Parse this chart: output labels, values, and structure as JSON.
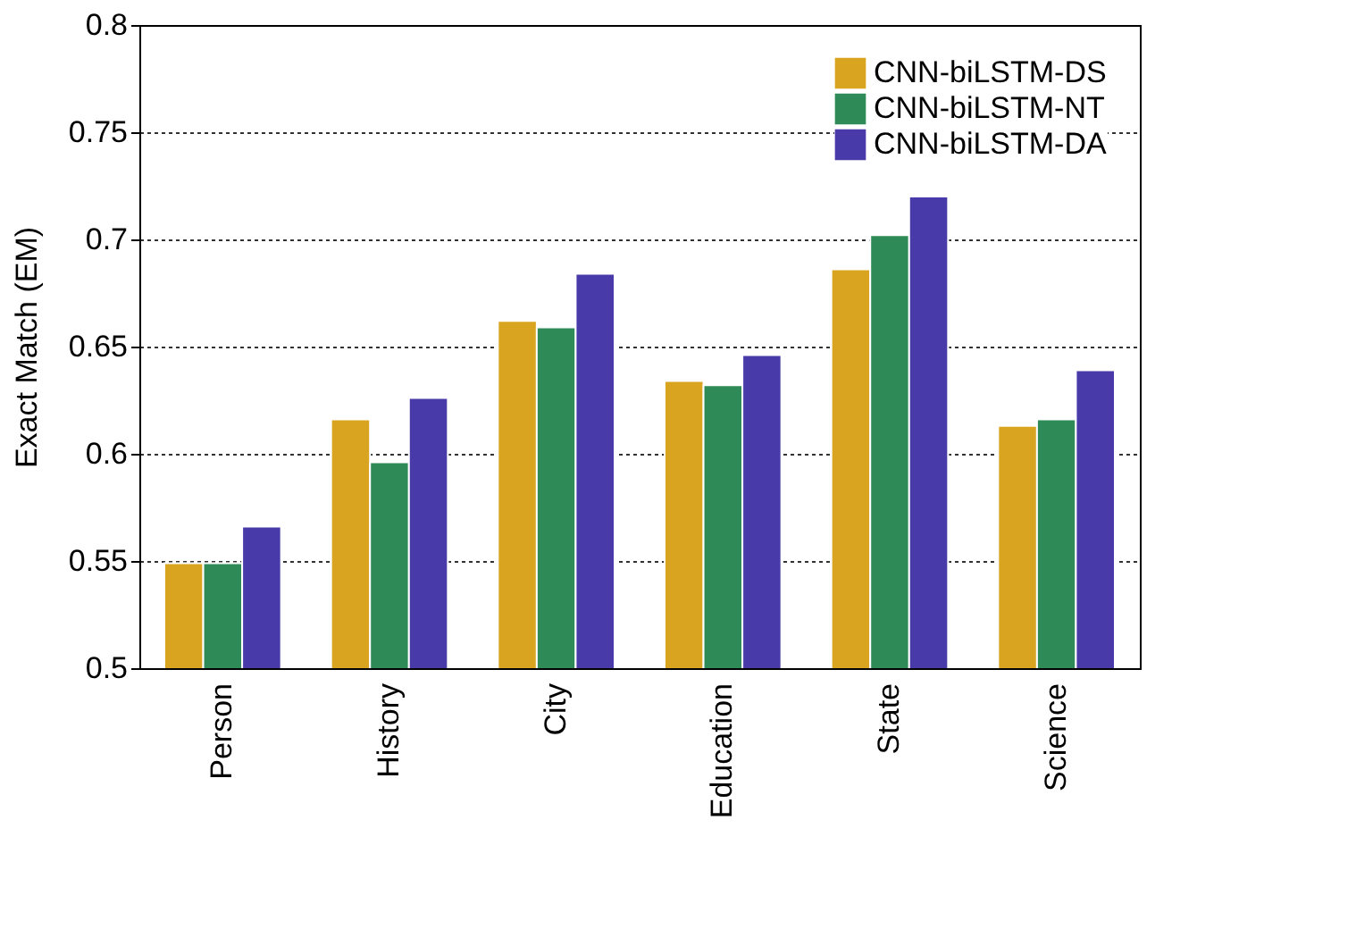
{
  "chart_data": {
    "type": "bar",
    "ylabel": "Exact Match (EM)",
    "categories": [
      "Person",
      "History",
      "City",
      "Education",
      "State",
      "Science"
    ],
    "series": [
      {
        "name": "CNN-biLSTM-DS",
        "color": "#d9a520",
        "values": [
          0.549,
          0.616,
          0.662,
          0.634,
          0.686,
          0.613
        ]
      },
      {
        "name": "CNN-biLSTM-NT",
        "color": "#2e8b57",
        "values": [
          0.549,
          0.596,
          0.659,
          0.632,
          0.702,
          0.616
        ]
      },
      {
        "name": "CNN-biLSTM-DA",
        "color": "#483aa8",
        "values": [
          0.566,
          0.626,
          0.684,
          0.646,
          0.72,
          0.639
        ]
      }
    ],
    "ylim": [
      0.5,
      0.8
    ],
    "yticks": [
      0.5,
      0.55,
      0.6,
      0.65,
      0.7,
      0.75,
      0.8
    ],
    "grid": "y",
    "legend": "top right"
  }
}
